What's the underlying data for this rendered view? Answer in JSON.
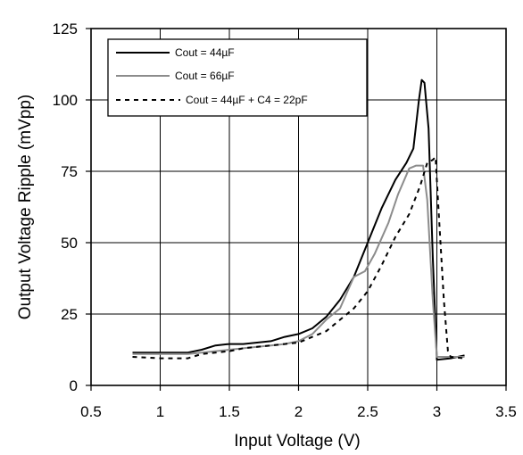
{
  "chart_data": {
    "type": "line",
    "title": "",
    "xlabel": "Input Voltage (V)",
    "ylabel": "Output Voltage Ripple (mVpp)",
    "xlim": [
      0.5,
      3.5
    ],
    "ylim": [
      0,
      125
    ],
    "x_ticks": [
      "0.5",
      "1",
      "1.5",
      "2",
      "2.5",
      "3",
      "3.5"
    ],
    "y_ticks": [
      "0",
      "25",
      "50",
      "75",
      "100",
      "125"
    ],
    "grid": true,
    "legend_position": "top-left",
    "series": [
      {
        "name": "Cout = 44µF",
        "color": "#000000",
        "style": "solid",
        "points": [
          [
            0.8,
            11.5
          ],
          [
            1.0,
            11.5
          ],
          [
            1.2,
            11.5
          ],
          [
            1.3,
            12.5
          ],
          [
            1.4,
            14
          ],
          [
            1.5,
            14.5
          ],
          [
            1.6,
            14.5
          ],
          [
            1.7,
            15
          ],
          [
            1.8,
            15.5
          ],
          [
            1.9,
            17
          ],
          [
            2.0,
            18
          ],
          [
            2.1,
            20
          ],
          [
            2.2,
            24
          ],
          [
            2.3,
            30
          ],
          [
            2.4,
            38
          ],
          [
            2.5,
            50
          ],
          [
            2.6,
            62
          ],
          [
            2.7,
            72
          ],
          [
            2.78,
            78
          ],
          [
            2.83,
            83
          ],
          [
            2.87,
            100
          ],
          [
            2.89,
            107
          ],
          [
            2.91,
            106
          ],
          [
            2.94,
            90
          ],
          [
            2.97,
            45
          ],
          [
            3.0,
            9
          ],
          [
            3.1,
            9.5
          ],
          [
            3.2,
            10.5
          ]
        ]
      },
      {
        "name": "Cout = 66µF",
        "color": "#8c8c8c",
        "style": "solid",
        "points": [
          [
            0.8,
            11
          ],
          [
            1.0,
            11
          ],
          [
            1.2,
            11
          ],
          [
            1.3,
            11.5
          ],
          [
            1.4,
            12
          ],
          [
            1.5,
            12.5
          ],
          [
            1.6,
            13
          ],
          [
            1.7,
            13.5
          ],
          [
            1.8,
            14
          ],
          [
            1.9,
            14.5
          ],
          [
            2.0,
            15.5
          ],
          [
            2.1,
            18
          ],
          [
            2.2,
            23
          ],
          [
            2.3,
            27
          ],
          [
            2.4,
            38
          ],
          [
            2.48,
            40
          ],
          [
            2.55,
            46
          ],
          [
            2.65,
            57
          ],
          [
            2.72,
            67
          ],
          [
            2.8,
            76
          ],
          [
            2.85,
            77
          ],
          [
            2.9,
            77
          ],
          [
            2.93,
            65
          ],
          [
            2.97,
            30
          ],
          [
            3.0,
            10
          ],
          [
            3.1,
            10
          ],
          [
            3.2,
            10
          ]
        ]
      },
      {
        "name": "Cout = 44µF + C4 = 22pF",
        "color": "#000000",
        "style": "dashed",
        "points": [
          [
            0.8,
            10
          ],
          [
            1.0,
            9.5
          ],
          [
            1.2,
            9.5
          ],
          [
            1.3,
            11
          ],
          [
            1.4,
            11.5
          ],
          [
            1.5,
            12
          ],
          [
            1.6,
            13
          ],
          [
            1.7,
            13.5
          ],
          [
            1.8,
            14
          ],
          [
            1.9,
            14.5
          ],
          [
            2.0,
            15
          ],
          [
            2.1,
            17
          ],
          [
            2.2,
            19
          ],
          [
            2.3,
            23
          ],
          [
            2.4,
            27
          ],
          [
            2.5,
            33
          ],
          [
            2.6,
            42
          ],
          [
            2.7,
            52
          ],
          [
            2.8,
            60
          ],
          [
            2.88,
            70
          ],
          [
            2.93,
            78
          ],
          [
            2.97,
            79
          ],
          [
            2.99,
            80
          ],
          [
            3.02,
            55
          ],
          [
            3.05,
            30
          ],
          [
            3.08,
            12
          ],
          [
            3.1,
            10
          ],
          [
            3.2,
            9.5
          ]
        ]
      }
    ]
  }
}
